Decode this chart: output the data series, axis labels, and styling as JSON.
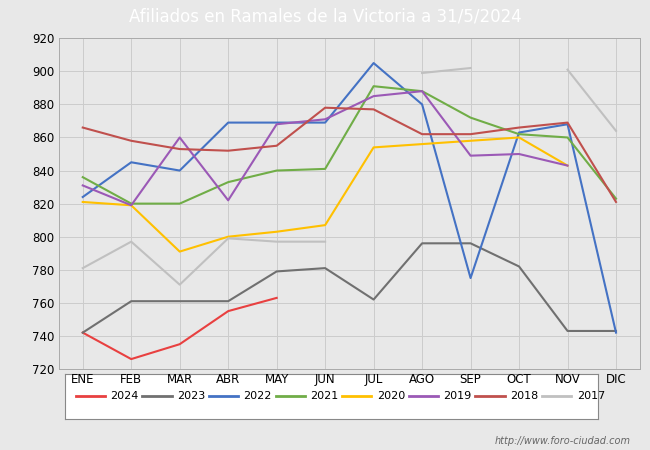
{
  "title": "Afiliados en Ramales de la Victoria a 31/5/2024",
  "title_bg_color": "#5b9bd5",
  "title_text_color": "white",
  "ylim": [
    720,
    920
  ],
  "yticks": [
    720,
    740,
    760,
    780,
    800,
    820,
    840,
    860,
    880,
    900,
    920
  ],
  "months": [
    "ENE",
    "FEB",
    "MAR",
    "ABR",
    "MAY",
    "JUN",
    "JUL",
    "AGO",
    "SEP",
    "OCT",
    "NOV",
    "DIC"
  ],
  "watermark": "http://www.foro-ciudad.com",
  "series": {
    "2024": {
      "color": "#e84040",
      "values": [
        742,
        726,
        735,
        755,
        763,
        null,
        null,
        null,
        null,
        null,
        null,
        null
      ]
    },
    "2023": {
      "color": "#707070",
      "values": [
        742,
        761,
        761,
        761,
        779,
        781,
        762,
        796,
        796,
        782,
        743,
        743
      ]
    },
    "2022": {
      "color": "#4472c4",
      "values": [
        824,
        845,
        840,
        869,
        869,
        869,
        905,
        880,
        775,
        863,
        868,
        742
      ]
    },
    "2021": {
      "color": "#70ad47",
      "values": [
        836,
        820,
        820,
        833,
        840,
        841,
        891,
        888,
        872,
        862,
        860,
        823
      ]
    },
    "2020": {
      "color": "#ffc000",
      "values": [
        821,
        819,
        791,
        800,
        803,
        807,
        854,
        856,
        858,
        860,
        843,
        null
      ]
    },
    "2019": {
      "color": "#9b59b6",
      "values": [
        831,
        819,
        860,
        822,
        868,
        871,
        885,
        888,
        849,
        850,
        843,
        null
      ]
    },
    "2018": {
      "color": "#c0504d",
      "values": [
        866,
        858,
        853,
        852,
        855,
        878,
        877,
        862,
        862,
        866,
        869,
        821
      ]
    },
    "2017": {
      "color": "#c0c0c0",
      "values": [
        781,
        797,
        771,
        799,
        797,
        797,
        null,
        899,
        902,
        null,
        901,
        864
      ]
    }
  },
  "legend_order": [
    "2024",
    "2023",
    "2022",
    "2021",
    "2020",
    "2019",
    "2018",
    "2017"
  ],
  "background_color": "#e8e8e8",
  "plot_bg_color": "#e8e8e8",
  "grid_color": "#cccccc"
}
